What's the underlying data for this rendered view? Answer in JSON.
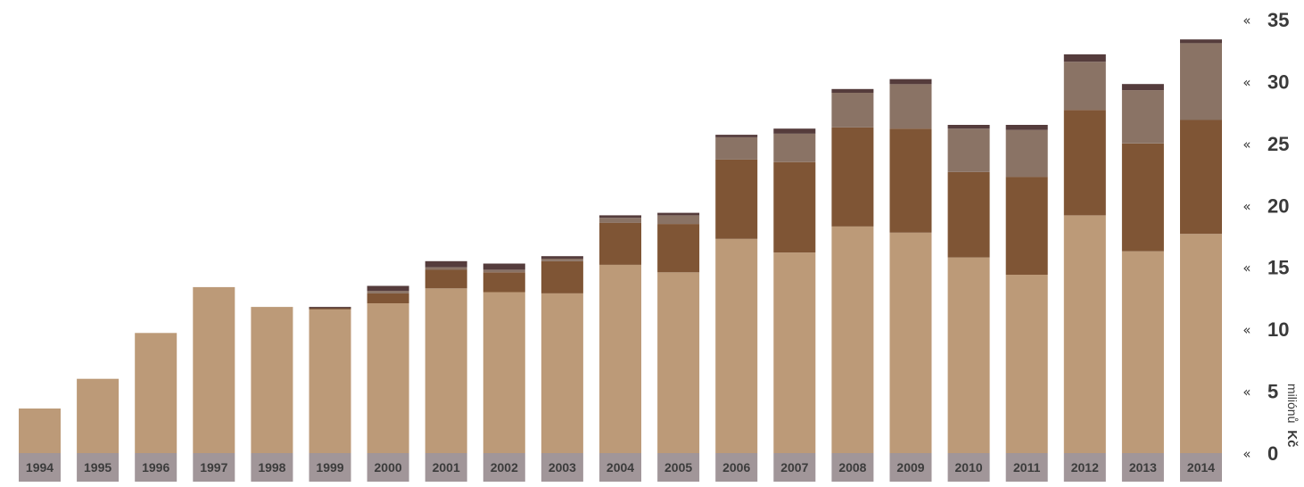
{
  "chart_data": {
    "type": "bar",
    "stacked": true,
    "categories": [
      "1994",
      "1995",
      "1996",
      "1997",
      "1998",
      "1999",
      "2000",
      "2001",
      "2002",
      "2003",
      "2004",
      "2005",
      "2006",
      "2007",
      "2008",
      "2009",
      "2010",
      "2011",
      "2012",
      "2013",
      "2014"
    ],
    "series": [
      {
        "color": "#bc9a78",
        "values": [
          3.6,
          6.0,
          9.7,
          13.4,
          11.8,
          11.6,
          12.1,
          13.3,
          13.0,
          12.9,
          15.2,
          14.6,
          17.3,
          16.2,
          18.3,
          17.8,
          15.8,
          14.4,
          19.2,
          16.3,
          17.7
        ]
      },
      {
        "color": "#7f5535",
        "values": [
          0,
          0,
          0,
          0,
          0,
          0.1,
          0.8,
          1.5,
          1.6,
          2.6,
          3.4,
          3.9,
          6.4,
          7.3,
          8.0,
          8.4,
          6.9,
          7.9,
          8.5,
          8.7,
          9.2
        ]
      },
      {
        "color": "#8a7365",
        "values": [
          0,
          0,
          0,
          0,
          0,
          0,
          0.2,
          0.2,
          0.2,
          0.2,
          0.4,
          0.7,
          1.8,
          2.3,
          2.8,
          3.6,
          3.5,
          3.8,
          3.9,
          4.3,
          6.2
        ]
      },
      {
        "color": "#553c3c",
        "values": [
          0,
          0,
          0,
          0,
          0,
          0.1,
          0.4,
          0.5,
          0.5,
          0.2,
          0.2,
          0.2,
          0.2,
          0.4,
          0.3,
          0.4,
          0.3,
          0.4,
          0.6,
          0.5,
          0.3
        ]
      }
    ],
    "y_ticks": [
      "0",
      "5",
      "10",
      "15",
      "20",
      "25",
      "30",
      "35"
    ],
    "ylim": [
      0,
      35
    ],
    "ylabel_prefix": "miliónů",
    "ylabel_unit": "Kč",
    "y_axis_side": "right",
    "grid": false,
    "legend": "none",
    "category_label_bg": "#a19699"
  }
}
